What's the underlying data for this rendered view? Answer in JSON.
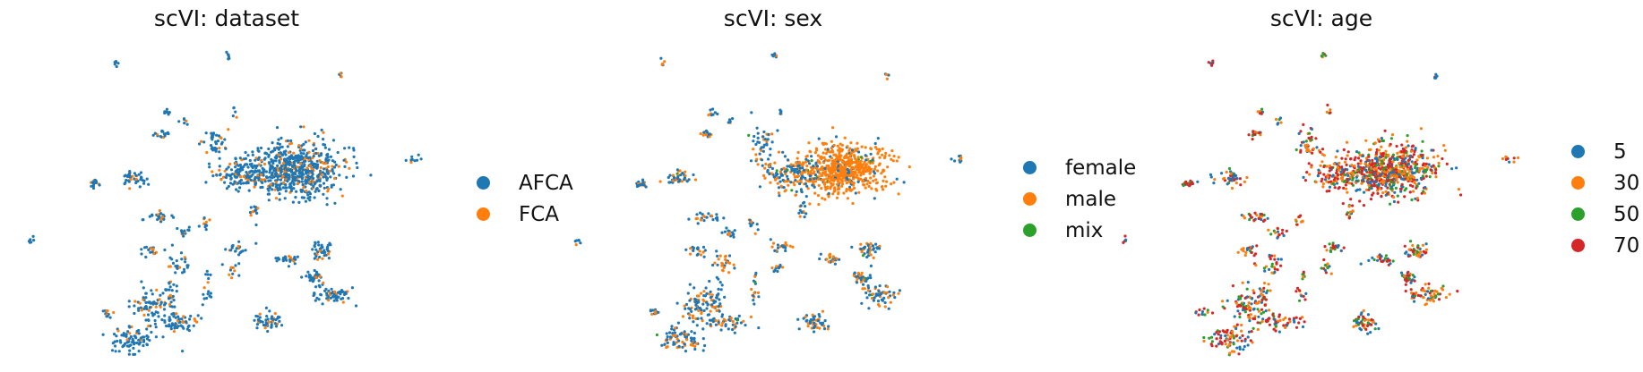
{
  "chart_data": [
    {
      "type": "scatter",
      "title": "scVI: dataset",
      "xlabel": "",
      "ylabel": "",
      "grid": false,
      "legend_position": "right",
      "series": [
        {
          "name": "AFCA",
          "color": "#1f77b4"
        },
        {
          "name": "FCA",
          "color": "#ff7f0e"
        }
      ]
    },
    {
      "type": "scatter",
      "title": "scVI: sex",
      "xlabel": "",
      "ylabel": "",
      "grid": false,
      "legend_position": "right",
      "series": [
        {
          "name": "female",
          "color": "#1f77b4"
        },
        {
          "name": "male",
          "color": "#ff7f0e"
        },
        {
          "name": "mix",
          "color": "#2ca02c"
        }
      ]
    },
    {
      "type": "scatter",
      "title": "scVI: age",
      "xlabel": "",
      "ylabel": "",
      "grid": false,
      "legend_position": "right",
      "series": [
        {
          "name": "5",
          "color": "#1f77b4"
        },
        {
          "name": "30",
          "color": "#ff7f0e"
        },
        {
          "name": "50",
          "color": "#2ca02c"
        },
        {
          "name": "70",
          "color": "#d62728"
        }
      ]
    }
  ]
}
